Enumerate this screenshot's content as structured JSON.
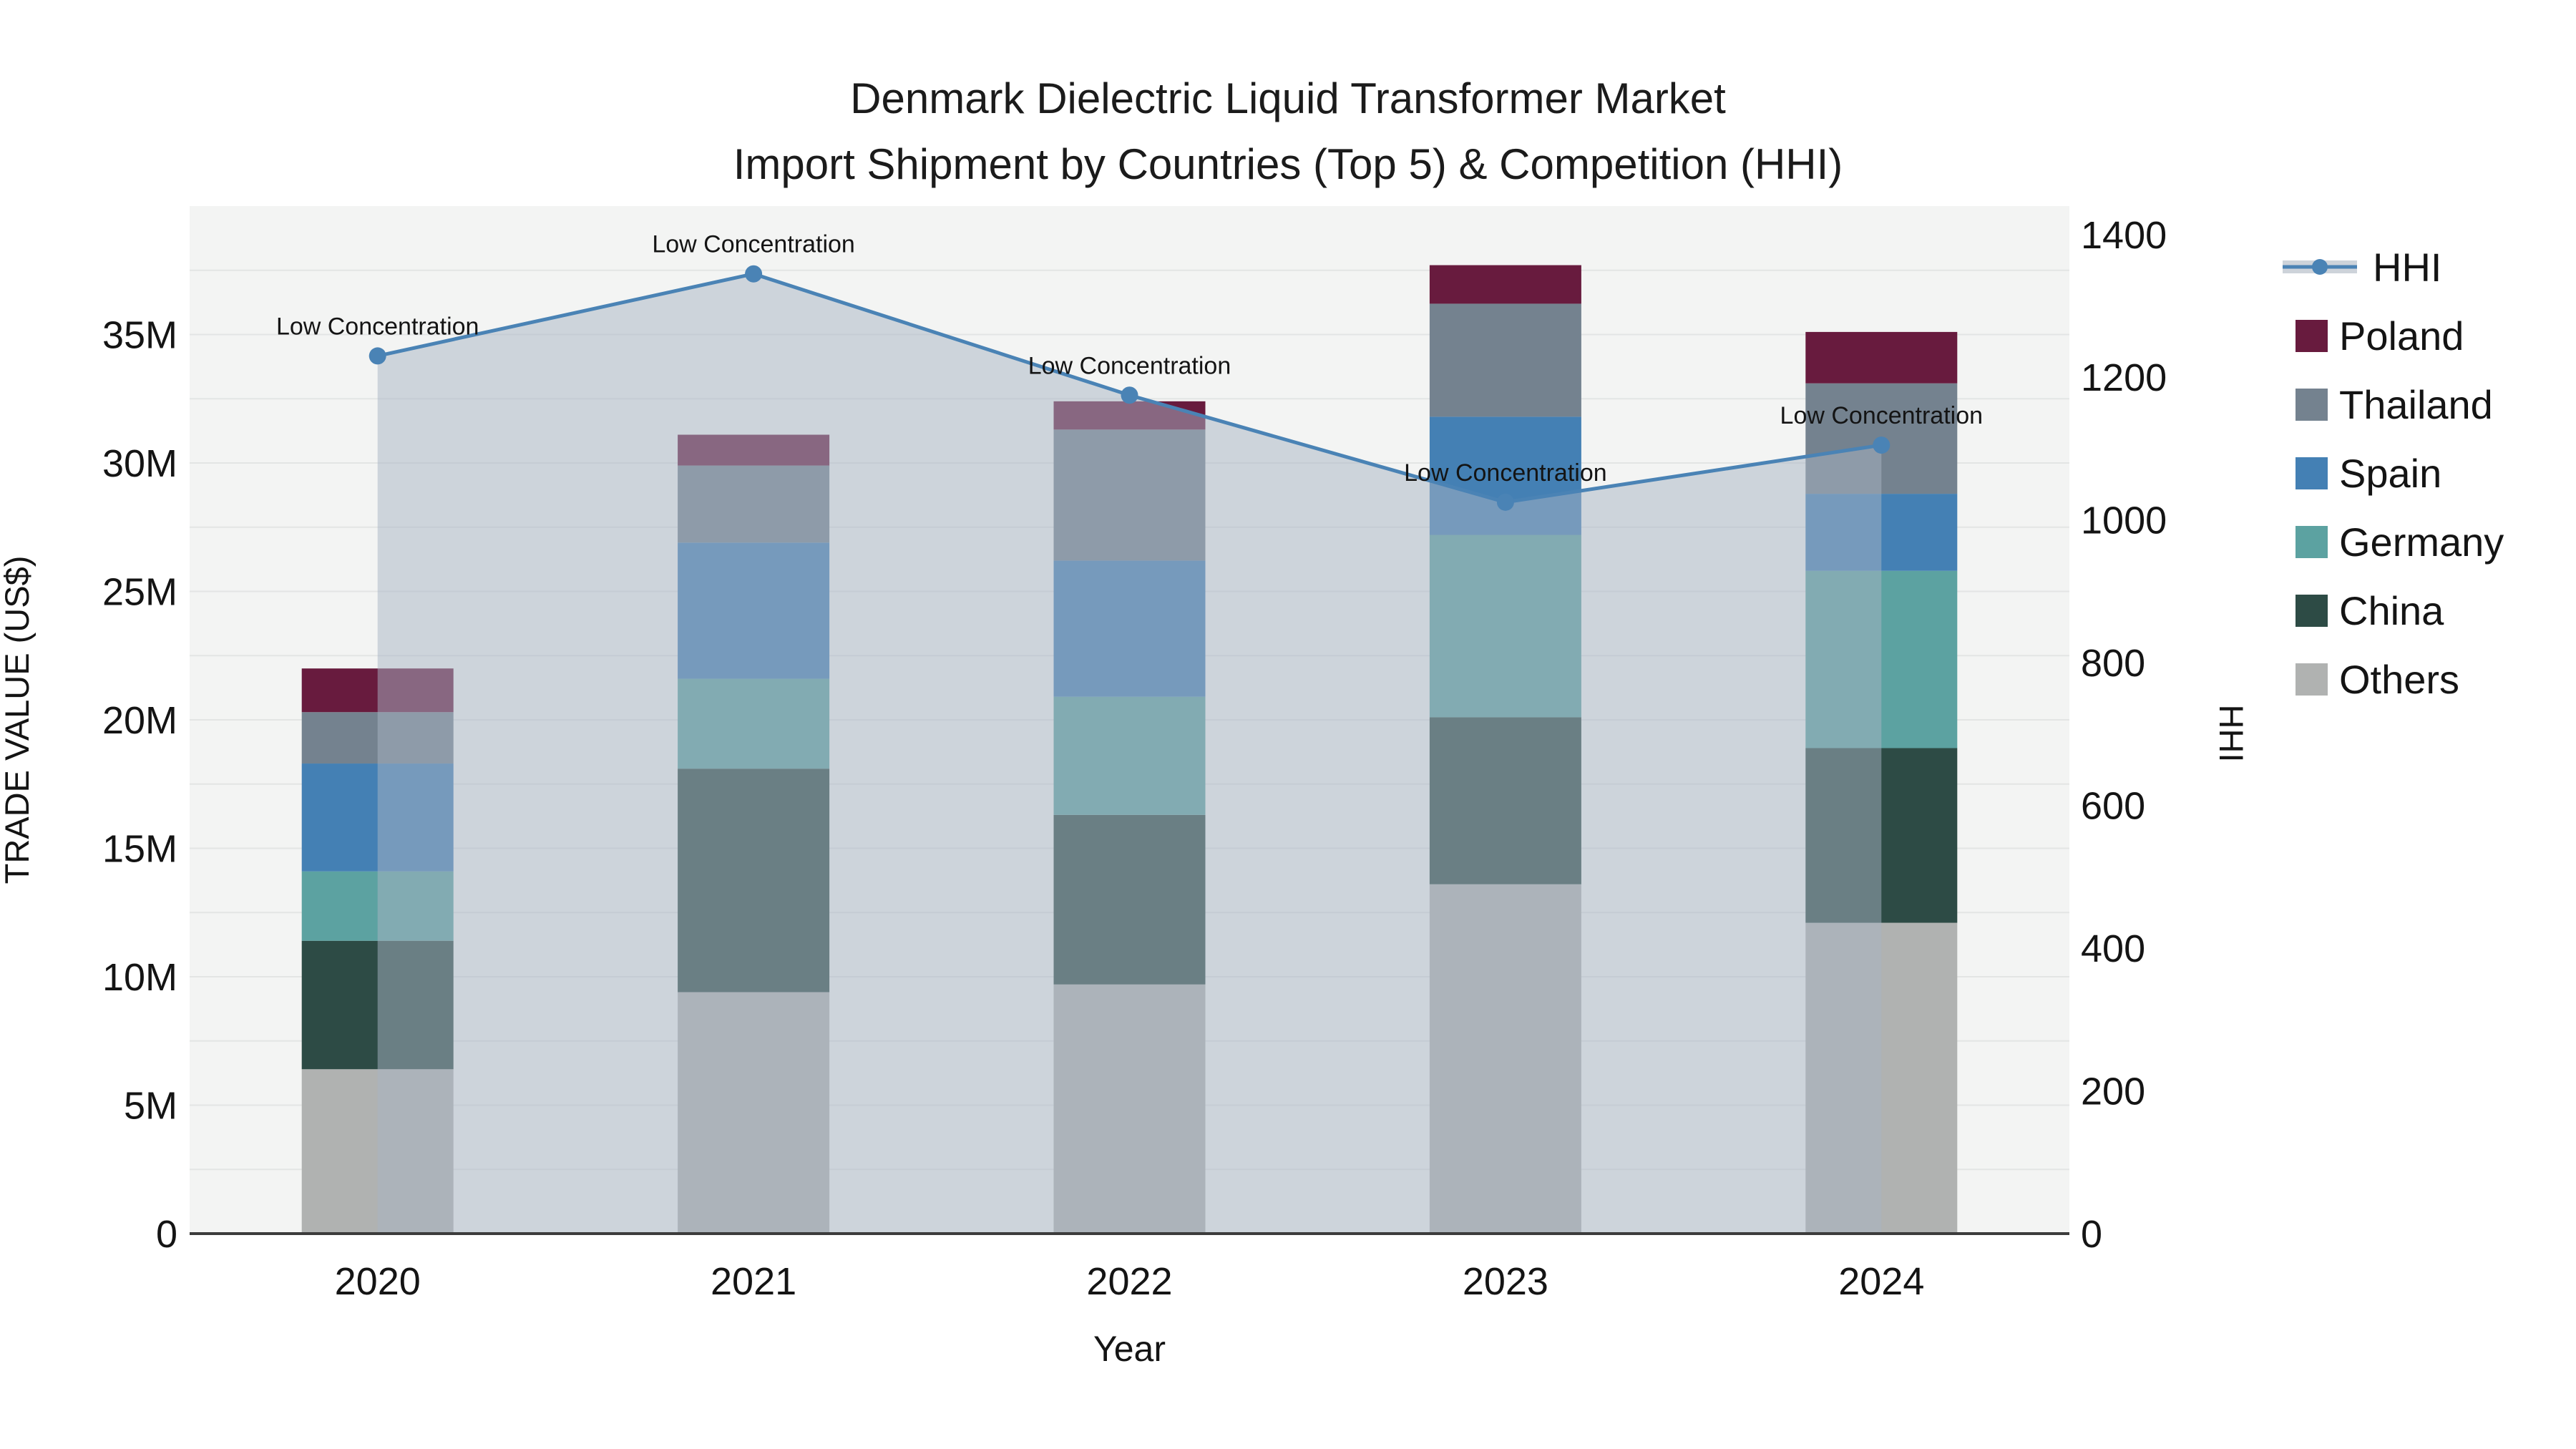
{
  "title": {
    "line1": "Denmark Dielectric Liquid Transformer Market",
    "line2": "Import Shipment by Countries (Top 5) & Competition (HHI)"
  },
  "axes": {
    "left": {
      "label": "TRADE VALUE (US$)",
      "tick_values": [
        0,
        5,
        10,
        15,
        20,
        25,
        30,
        35
      ],
      "tick_labels": [
        "0",
        "5M",
        "10M",
        "15M",
        "20M",
        "25M",
        "30M",
        "35M"
      ]
    },
    "right": {
      "label": "HHI",
      "tick_values": [
        0,
        200,
        400,
        600,
        800,
        1000,
        1200,
        1400
      ],
      "tick_labels": [
        "0",
        "200",
        "400",
        "600",
        "800",
        "1000",
        "1200",
        "1400"
      ]
    },
    "x": {
      "label": "Year",
      "tick_labels": [
        "2020",
        "2021",
        "2022",
        "2023",
        "2024"
      ]
    }
  },
  "legend": {
    "items": [
      {
        "label": "HHI",
        "type": "line",
        "color": "#4a83b5"
      },
      {
        "label": "Poland",
        "type": "patch",
        "color": "#681b3e"
      },
      {
        "label": "Thailand",
        "type": "patch",
        "color": "#74828f"
      },
      {
        "label": "Spain",
        "type": "patch",
        "color": "#4480b4"
      },
      {
        "label": "Germany",
        "type": "patch",
        "color": "#5ca2a1"
      },
      {
        "label": "China",
        "type": "patch",
        "color": "#2d4b45"
      },
      {
        "label": "Others",
        "type": "patch",
        "color": "#b0b2b1"
      }
    ]
  },
  "colors": {
    "plot_background": "#f3f4f3",
    "gridline": "#e3e5e4",
    "spine": "#3c3c3c",
    "hhi_line": "#4a83b5",
    "hhi_area_fill": "rgba(167,179,196,0.5)",
    "legend_band": "#cdd3da",
    "annotation_text": "#000000"
  },
  "chart_data": {
    "type": "bar",
    "subtype": "stacked-bars-with-line-overlay",
    "categories": [
      "2020",
      "2021",
      "2022",
      "2023",
      "2024"
    ],
    "bar_units": "million US$",
    "series": [
      {
        "name": "Others",
        "color": "#b0b2b1",
        "values": [
          6.4,
          9.4,
          9.7,
          13.6,
          12.1
        ]
      },
      {
        "name": "China",
        "color": "#2d4b45",
        "values": [
          5.0,
          8.7,
          6.6,
          6.5,
          6.8
        ]
      },
      {
        "name": "Germany",
        "color": "#5ca2a1",
        "values": [
          2.7,
          3.5,
          4.6,
          7.1,
          6.9
        ]
      },
      {
        "name": "Spain",
        "color": "#4480b4",
        "values": [
          4.2,
          5.3,
          5.3,
          4.6,
          3.0
        ]
      },
      {
        "name": "Thailand",
        "color": "#74828f",
        "values": [
          2.0,
          3.0,
          5.1,
          4.4,
          4.3
        ]
      },
      {
        "name": "Poland",
        "color": "#681b3e",
        "values": [
          1.7,
          1.2,
          1.1,
          1.5,
          2.0
        ]
      }
    ],
    "bar_totals": [
      22.0,
      31.1,
      32.4,
      37.7,
      35.1
    ],
    "line_series": {
      "name": "HHI",
      "axis": "right",
      "values": [
        1230,
        1345,
        1175,
        1025,
        1105
      ],
      "point_annotations": [
        "Low Concentration",
        "Low Concentration",
        "Low Concentration",
        "Low Concentration",
        "Low Concentration"
      ],
      "area_fill_under_line": true
    },
    "title": "Denmark Dielectric Liquid Transformer Market — Import Shipment by Countries (Top 5) & Competition (HHI)",
    "xlabel": "Year",
    "ylabel_left": "TRADE VALUE (US$)",
    "ylabel_right": "HHI",
    "ylim_left": [
      0,
      40
    ],
    "ylim_right": [
      0,
      1440
    ],
    "grid": "horizontal, every 2.5M",
    "legend_position": "right-outside"
  }
}
